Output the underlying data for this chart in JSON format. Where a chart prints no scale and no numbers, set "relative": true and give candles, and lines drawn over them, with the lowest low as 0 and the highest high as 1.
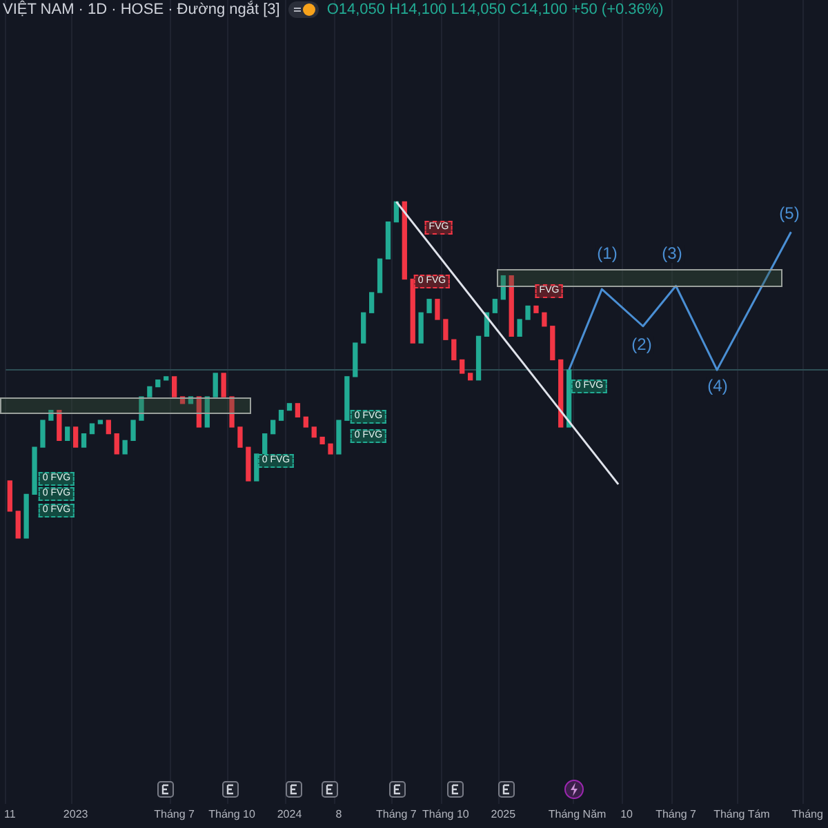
{
  "chart_data": {
    "type": "candlestick",
    "relative": true,
    "title": "VIỆT NAM · 1D · HOSE · Đường ngắt [3]",
    "subtitle": "O14,050 H14,100 L14,050 C14,100 +50 (+0.36%)",
    "categories": [
      "11",
      null,
      null,
      null,
      null,
      null,
      null,
      null,
      "2023",
      null,
      null,
      null,
      null,
      null,
      null,
      null,
      null,
      null,
      null,
      null,
      "Tháng 7",
      null,
      null,
      null,
      null,
      null,
      null,
      "Tháng 10",
      null,
      null,
      null,
      null,
      null,
      null,
      "2024",
      null,
      null,
      null,
      null,
      null,
      "8",
      null,
      null,
      null,
      null,
      null,
      null,
      "Tháng 7",
      null,
      null,
      null,
      null,
      null,
      "Tháng 10",
      null,
      null,
      null,
      null,
      null,
      null,
      "2025",
      null,
      null,
      null,
      null,
      null,
      null,
      null,
      null,
      "Tháng Năm",
      null,
      null,
      null,
      null,
      null,
      "10",
      null,
      null,
      null,
      null,
      null,
      "Tháng 7",
      null,
      null,
      null,
      null,
      null,
      null,
      null,
      "Tháng Tám",
      null,
      null,
      null,
      null,
      null,
      null,
      null,
      "Tháng",
      null,
      null
    ],
    "ohlc": [
      [
        0.17,
        0.17,
        0.08,
        0.08
      ],
      [
        0.08,
        0.08,
        0,
        0
      ],
      [
        0,
        0.13,
        0,
        0.13
      ],
      [
        0.13,
        0.27,
        0.13,
        0.27
      ],
      [
        0.27,
        0.35,
        0.27,
        0.35
      ],
      [
        0.35,
        0.38,
        0.35,
        0.38
      ],
      [
        0.38,
        0.38,
        0.29,
        0.29
      ],
      [
        0.29,
        0.33,
        0.29,
        0.33
      ],
      [
        0.33,
        0.33,
        0.27,
        0.27
      ],
      [
        0.27,
        0.31,
        0.27,
        0.31
      ],
      [
        0.31,
        0.34,
        0.31,
        0.34
      ],
      [
        0.34,
        0.35,
        0.34,
        0.35
      ],
      [
        0.35,
        0.35,
        0.31,
        0.31
      ],
      [
        0.31,
        0.31,
        0.25,
        0.25
      ],
      [
        0.25,
        0.29,
        0.25,
        0.29
      ],
      [
        0.29,
        0.35,
        0.29,
        0.35
      ],
      [
        0.35,
        0.42,
        0.35,
        0.42
      ],
      [
        0.42,
        0.45,
        0.42,
        0.45
      ],
      [
        0.45,
        0.47,
        0.45,
        0.47
      ],
      [
        0.47,
        0.48,
        0.47,
        0.48
      ],
      [
        0.48,
        0.48,
        0.42,
        0.42
      ],
      [
        0.42,
        0.42,
        0.4,
        0.4
      ],
      [
        0.4,
        0.42,
        0.4,
        0.42
      ],
      [
        0.42,
        0.42,
        0.33,
        0.33
      ],
      [
        0.33,
        0.42,
        0.33,
        0.42
      ],
      [
        0.42,
        0.49,
        0.42,
        0.49
      ],
      [
        0.49,
        0.49,
        0.42,
        0.42
      ],
      [
        0.42,
        0.42,
        0.33,
        0.33
      ],
      [
        0.33,
        0.33,
        0.27,
        0.27
      ],
      [
        0.27,
        0.27,
        0.17,
        0.17
      ],
      [
        0.17,
        0.25,
        0.17,
        0.25
      ],
      [
        0.25,
        0.31,
        0.25,
        0.31
      ],
      [
        0.31,
        0.35,
        0.31,
        0.35
      ],
      [
        0.35,
        0.38,
        0.35,
        0.38
      ],
      [
        0.38,
        0.4,
        0.38,
        0.4
      ],
      [
        0.4,
        0.4,
        0.36,
        0.36
      ],
      [
        0.36,
        0.36,
        0.33,
        0.33
      ],
      [
        0.33,
        0.33,
        0.3,
        0.3
      ],
      [
        0.3,
        0.3,
        0.28,
        0.28
      ],
      [
        0.28,
        0.28,
        0.25,
        0.25
      ],
      [
        0.25,
        0.35,
        0.25,
        0.35
      ],
      [
        0.35,
        0.48,
        0.35,
        0.48
      ],
      [
        0.48,
        0.58,
        0.48,
        0.58
      ],
      [
        0.58,
        0.67,
        0.58,
        0.67
      ],
      [
        0.67,
        0.73,
        0.67,
        0.73
      ],
      [
        0.73,
        0.83,
        0.73,
        0.83
      ],
      [
        0.83,
        0.94,
        0.83,
        0.94
      ],
      [
        0.94,
        1,
        0.94,
        1
      ],
      [
        1,
        1,
        0.77,
        0.77
      ],
      [
        0.77,
        0.77,
        0.58,
        0.58
      ],
      [
        0.58,
        0.67,
        0.58,
        0.67
      ],
      [
        0.67,
        0.71,
        0.67,
        0.71
      ],
      [
        0.71,
        0.71,
        0.65,
        0.65
      ],
      [
        0.65,
        0.65,
        0.59,
        0.59
      ],
      [
        0.59,
        0.59,
        0.53,
        0.53
      ],
      [
        0.53,
        0.53,
        0.49,
        0.49
      ],
      [
        0.49,
        0.49,
        0.47,
        0.47
      ],
      [
        0.47,
        0.6,
        0.47,
        0.6
      ],
      [
        0.6,
        0.67,
        0.6,
        0.67
      ],
      [
        0.67,
        0.71,
        0.67,
        0.71
      ],
      [
        0.71,
        0.78,
        0.71,
        0.78
      ],
      [
        0.78,
        0.78,
        0.6,
        0.6
      ],
      [
        0.6,
        0.65,
        0.6,
        0.65
      ],
      [
        0.65,
        0.69,
        0.65,
        0.69
      ],
      [
        0.69,
        0.69,
        0.67,
        0.67
      ],
      [
        0.67,
        0.67,
        0.63,
        0.63
      ],
      [
        0.63,
        0.63,
        0.53,
        0.53
      ],
      [
        0.53,
        0.53,
        0.33,
        0.33
      ],
      [
        0.33,
        0.5,
        0.33,
        0.5
      ],
      null,
      null,
      null,
      null,
      null,
      null,
      null,
      null,
      null,
      null,
      null,
      null,
      null,
      null,
      null,
      null,
      null,
      null,
      null,
      null,
      null,
      null,
      null,
      null,
      null,
      null,
      null,
      null,
      null,
      null,
      null
    ],
    "colors": [
      "#f23645",
      "#f23645",
      "#22ab94",
      "#22ab94",
      "#22ab94",
      "#22ab94",
      "#f23645",
      "#22ab94",
      "#f23645",
      "#22ab94",
      "#22ab94",
      "#22ab94",
      "#f23645",
      "#f23645",
      "#22ab94",
      "#22ab94",
      "#22ab94",
      "#22ab94",
      "#22ab94",
      "#22ab94",
      "#f23645",
      "#f23645",
      "#22ab94",
      "#f23645",
      "#22ab94",
      "#22ab94",
      "#f23645",
      "#f23645",
      "#f23645",
      "#f23645",
      "#22ab94",
      "#22ab94",
      "#22ab94",
      "#22ab94",
      "#22ab94",
      "#f23645",
      "#f23645",
      "#f23645",
      "#f23645",
      "#f23645",
      "#22ab94",
      "#22ab94",
      "#22ab94",
      "#22ab94",
      "#22ab94",
      "#22ab94",
      "#22ab94",
      "#22ab94",
      "#f23645",
      "#f23645",
      "#22ab94",
      "#22ab94",
      "#f23645",
      "#f23645",
      "#f23645",
      "#f23645",
      "#f23645",
      "#22ab94",
      "#22ab94",
      "#22ab94",
      "#22ab94",
      "#f23645",
      "#22ab94",
      "#22ab94",
      "#f23645",
      "#f23645",
      "#f23645",
      "#f23645",
      "#22ab94",
      null,
      null,
      null,
      null,
      null,
      null,
      null,
      null,
      null,
      null,
      null,
      null,
      null,
      null,
      null,
      null,
      null,
      null,
      null,
      null,
      null,
      null,
      null,
      null,
      null,
      null,
      null,
      null,
      null,
      null,
      null
    ],
    "series": [
      {
        "type": "line",
        "color": "#4a8fd4",
        "values": [
          null,
          null,
          null,
          null,
          null,
          null,
          null,
          null,
          null,
          null,
          null,
          null,
          null,
          null,
          null,
          null,
          null,
          null,
          null,
          null,
          null,
          null,
          null,
          null,
          null,
          null,
          null,
          null,
          null,
          null,
          null,
          null,
          null,
          null,
          null,
          null,
          null,
          null,
          null,
          null,
          null,
          null,
          null,
          null,
          null,
          null,
          null,
          null,
          null,
          null,
          null,
          null,
          null,
          null,
          null,
          null,
          null,
          null,
          null,
          null,
          null,
          null,
          null,
          null,
          null,
          null,
          null,
          null,
          0.5,
          null,
          null,
          null,
          0.74,
          null,
          null,
          null,
          null,
          0.63,
          null,
          null,
          null,
          0.75,
          null,
          null,
          null,
          null,
          0.5,
          null,
          null,
          null,
          null,
          null,
          null,
          null,
          null,
          0.91,
          null,
          null,
          null,
          null
        ]
      },
      {
        "type": "line",
        "color": "#e0e3eb",
        "values": [
          null,
          null,
          null,
          null,
          null,
          null,
          null,
          null,
          null,
          null,
          null,
          null,
          null,
          null,
          null,
          null,
          null,
          null,
          null,
          null,
          null,
          null,
          null,
          null,
          null,
          null,
          null,
          null,
          null,
          null,
          null,
          null,
          null,
          null,
          null,
          null,
          null,
          null,
          null,
          null,
          null,
          null,
          null,
          null,
          null,
          null,
          null,
          1,
          null,
          null,
          null,
          null,
          null,
          null,
          null,
          null,
          null,
          null,
          null,
          null,
          null,
          null,
          null,
          null,
          null,
          null,
          null,
          null,
          null,
          null,
          null,
          null,
          null,
          null,
          0.16,
          null,
          null,
          null,
          null,
          null,
          null,
          null,
          null,
          null,
          null,
          null,
          null,
          null,
          null,
          null,
          null,
          null,
          null,
          null,
          null,
          null,
          null,
          null,
          null,
          null
        ]
      }
    ],
    "ref_lines": [
      {
        "axis": "y",
        "value": 0.5,
        "color": "#2e4f55"
      }
    ],
    "annotations": [
      "0 FVG",
      "0 FVG",
      "0 FVG",
      "0 FVG",
      "0 FVG",
      "0 FVG",
      "FVG",
      "0 FVG",
      "FVG",
      "0 FVG",
      "(1)",
      "(2)",
      "(3)",
      "(4)",
      "(5)"
    ],
    "grid": "x",
    "legend": false
  }
}
